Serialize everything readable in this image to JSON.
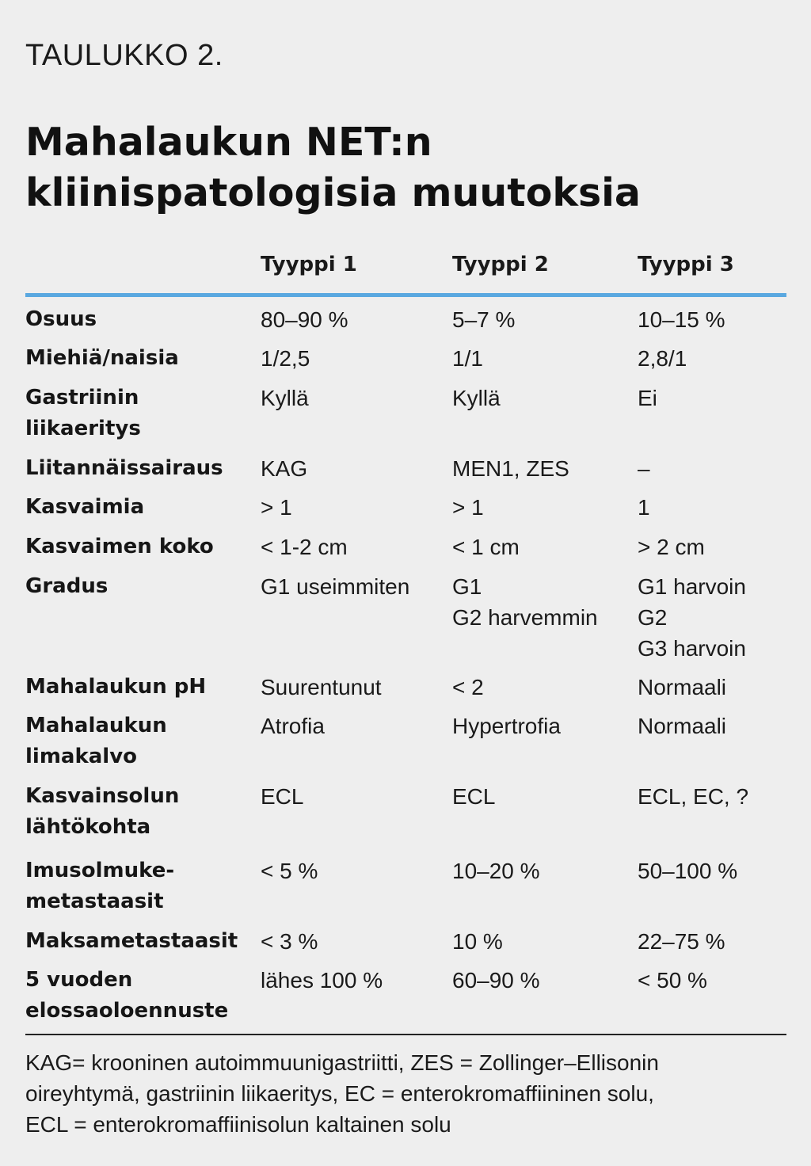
{
  "label": "TAULUKKO 2.",
  "title": {
    "line1": "Mahalaukun NET:n",
    "line2": "kliinispatologisia muutoksia"
  },
  "table": {
    "headers": [
      "",
      "Tyyppi 1",
      "Tyyppi 2",
      "Tyyppi 3"
    ],
    "rows": [
      {
        "label": [
          "Osuus"
        ],
        "t1": [
          "80–90 %"
        ],
        "t2": [
          "5–7 %"
        ],
        "t3": [
          "10–15 %"
        ]
      },
      {
        "label": [
          "Miehiä/naisia"
        ],
        "t1": [
          "1/2,5"
        ],
        "t2": [
          "1/1"
        ],
        "t3": [
          "2,8/1"
        ]
      },
      {
        "label": [
          "Gastriinin",
          "liikaeritys"
        ],
        "t1": [
          "Kyllä"
        ],
        "t2": [
          "Kyllä"
        ],
        "t3": [
          "Ei"
        ]
      },
      {
        "label": [
          "Liitannäissairaus"
        ],
        "t1": [
          "KAG"
        ],
        "t2": [
          "MEN1, ZES"
        ],
        "t3": [
          "–"
        ]
      },
      {
        "label": [
          "Kasvaimia"
        ],
        "t1": [
          "> 1"
        ],
        "t2": [
          "> 1"
        ],
        "t3": [
          "1"
        ]
      },
      {
        "label": [
          "Kasvaimen koko"
        ],
        "t1": [
          "< 1-2 cm"
        ],
        "t2": [
          "< 1 cm"
        ],
        "t3": [
          "> 2 cm"
        ]
      },
      {
        "label": [
          "Gradus"
        ],
        "t1": [
          "G1 useimmiten"
        ],
        "t2": [
          "G1",
          "G2 harvemmin"
        ],
        "t3": [
          "G1 harvoin",
          "G2",
          "G3 harvoin"
        ]
      },
      {
        "label": [
          "Mahalaukun pH"
        ],
        "t1": [
          "Suurentunut"
        ],
        "t2": [
          "< 2"
        ],
        "t3": [
          "Normaali"
        ]
      },
      {
        "label": [
          "Mahalaukun",
          "limakalvo"
        ],
        "t1": [
          "Atrofia"
        ],
        "t2": [
          "Hypertrofia"
        ],
        "t3": [
          "Normaali"
        ]
      },
      {
        "label": [
          "Kasvainsolun",
          "lähtökohta"
        ],
        "t1": [
          "ECL"
        ],
        "t2": [
          "ECL"
        ],
        "t3": [
          "ECL, EC, ?"
        ]
      },
      {
        "label": [
          "Imusolmuke-",
          "metastaasit"
        ],
        "t1": [
          "< 5 %"
        ],
        "t2": [
          "10–20 %"
        ],
        "t3": [
          "50–100 %"
        ]
      },
      {
        "label": [
          "Maksametastaasit"
        ],
        "t1": [
          "< 3 %"
        ],
        "t2": [
          "10 %"
        ],
        "t3": [
          "22–75 %"
        ]
      },
      {
        "label": [
          "5 vuoden",
          "elossaoloennuste"
        ],
        "t1": [
          "lähes 100 %"
        ],
        "t2": [
          "60–90 %"
        ],
        "t3": [
          "< 50 %"
        ]
      }
    ]
  },
  "footnote": {
    "line1": "KAG= krooninen autoimmuunigastriitti, ZES = Zollinger–Ellisonin",
    "line2": "oireyhtymä, gastriinin liikaeritys, EC = enterokromaffiininen solu,",
    "line3": "ECL = enterokromaffiinisolun kaltainen solu"
  },
  "colors": {
    "accent_rule": "#5aa8e0",
    "background": "#eeeeee",
    "text": "#1a1a1a"
  }
}
